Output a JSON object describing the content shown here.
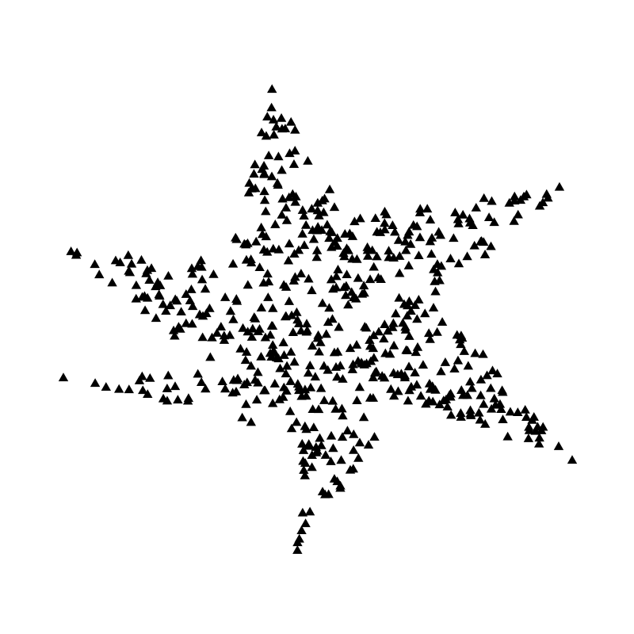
{
  "chart_data": {
    "type": "scatter",
    "title": "",
    "xlabel": "",
    "ylabel": "",
    "axes_visible": false,
    "grid": false,
    "legend": "none",
    "marker": "triangle-up",
    "marker_color": "#000000",
    "background_color": "#ffffff",
    "shape": "six-pointed star",
    "x_range": [
      -1.0,
      1.0
    ],
    "y_range": [
      -1.0,
      1.0
    ],
    "outer_points": [
      {
        "x": -0.18,
        "y": 0.9
      },
      {
        "x": 0.95,
        "y": 0.52
      },
      {
        "x": 1.0,
        "y": -0.54
      },
      {
        "x": -0.08,
        "y": -0.89
      },
      {
        "x": -1.0,
        "y": -0.22
      },
      {
        "x": -0.97,
        "y": 0.27
      }
    ],
    "inner_points": [
      {
        "x": 0.12,
        "y": 0.41
      },
      {
        "x": 0.48,
        "y": 0.07
      },
      {
        "x": 0.35,
        "y": -0.31
      },
      {
        "x": -0.08,
        "y": -0.44
      },
      {
        "x": -0.39,
        "y": -0.2
      },
      {
        "x": -0.35,
        "y": 0.23
      }
    ],
    "point_count": 620
  }
}
